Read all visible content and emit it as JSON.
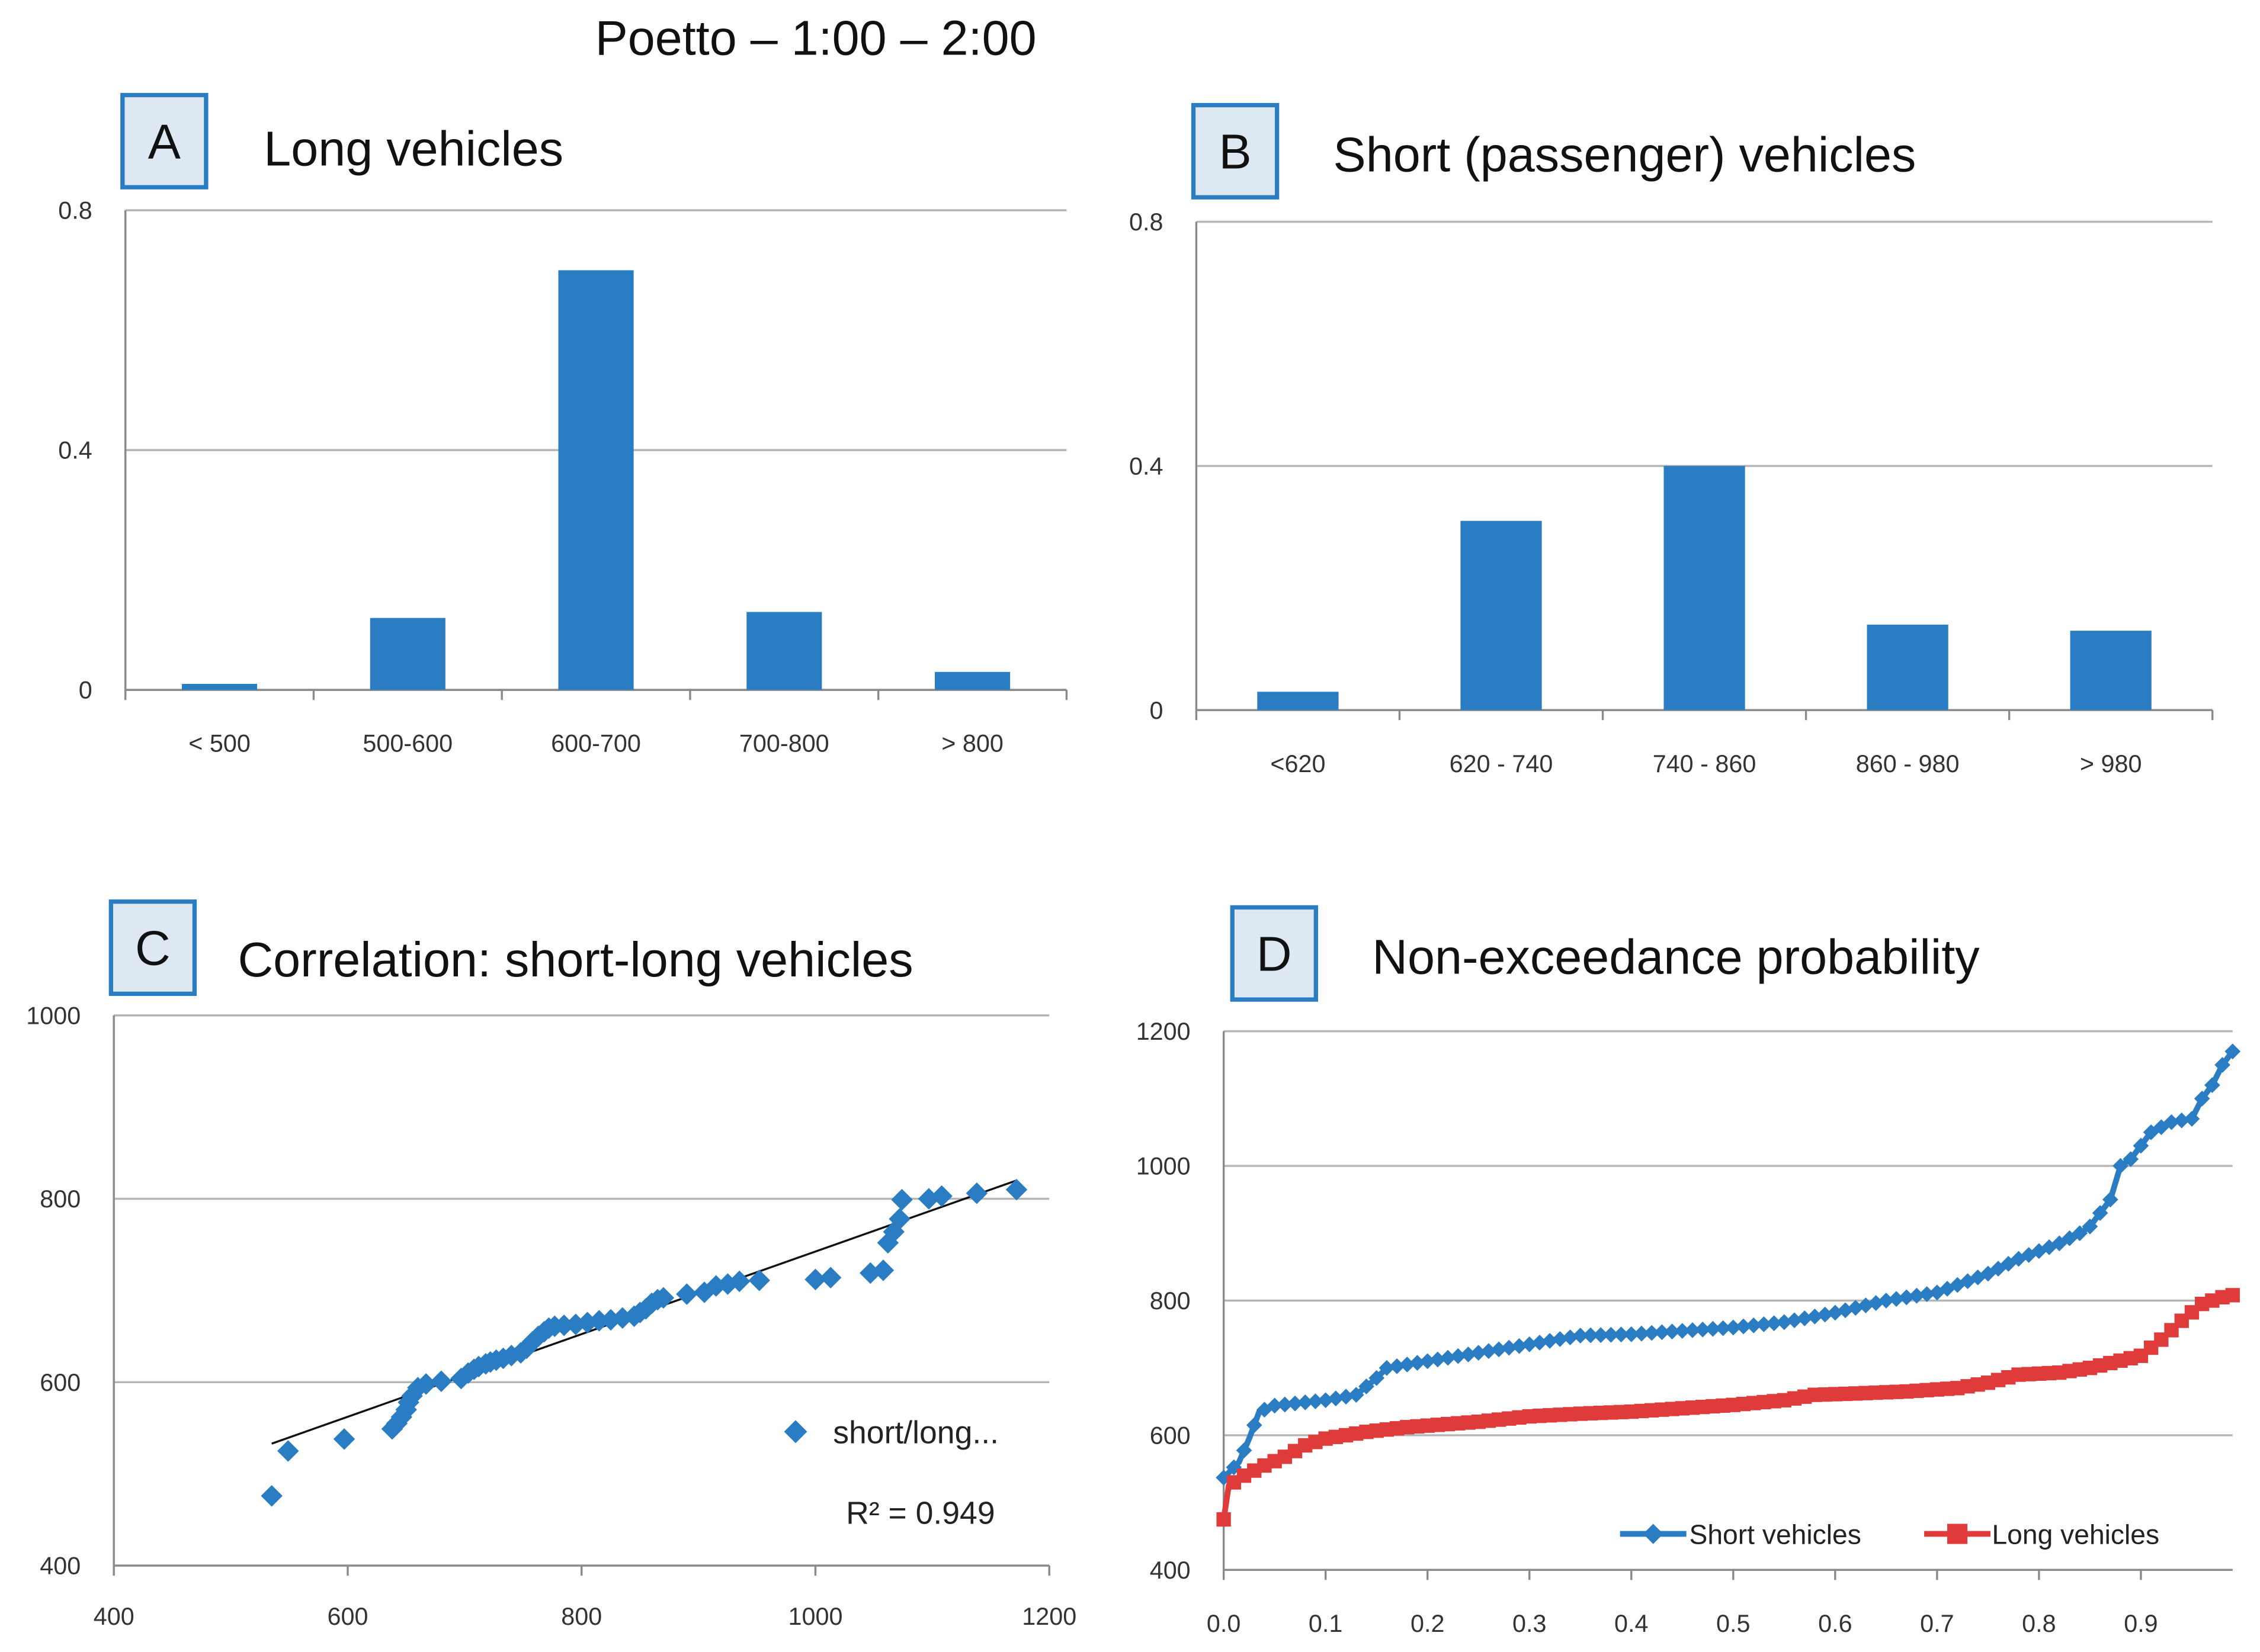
{
  "figure_title": "Poetto – 1:00 – 2:00",
  "colors": {
    "bar": "#2a7dc2",
    "short": "#2a7dc2",
    "long": "#e03b3b",
    "panel_box_fill": "#dde8f3",
    "panel_box_border": "#2a7dc2",
    "grid": "#b5b5b5",
    "axis": "#8a8a8a"
  },
  "chart_data": [
    {
      "panel": "A",
      "type": "bar",
      "title": "Long vehicles",
      "categories": [
        "< 500",
        "500-600",
        "600-700",
        "700-800",
        "> 800"
      ],
      "values": [
        0.01,
        0.12,
        0.7,
        0.13,
        0.03
      ],
      "yticks": [
        "0",
        "0.4",
        "0.8"
      ],
      "ylim": [
        0,
        0.8
      ],
      "grid": true
    },
    {
      "panel": "B",
      "type": "bar",
      "title": "Short (passenger) vehicles",
      "categories": [
        "<620",
        "620 - 740",
        "740 - 860",
        "860 - 980",
        "> 980"
      ],
      "values": [
        0.03,
        0.31,
        0.4,
        0.14,
        0.13
      ],
      "yticks": [
        "0",
        "0.4",
        "0.8"
      ],
      "ylim": [
        0,
        0.8
      ],
      "grid": true
    },
    {
      "panel": "C",
      "type": "scatter",
      "title": "Correlation: short-long vehicles",
      "xticks": [
        "400",
        "600",
        "800",
        "1000",
        "1200"
      ],
      "yticks": [
        "400",
        "600",
        "800",
        "1000"
      ],
      "xlim": [
        400,
        1200
      ],
      "ylim": [
        400,
        1000
      ],
      "legend": "short/long...",
      "r_squared_label": "R² = 0.949",
      "trendline": [
        [
          535,
          533
        ],
        [
          1172,
          820
        ]
      ],
      "points": [
        [
          535,
          476
        ],
        [
          549,
          525
        ],
        [
          597,
          538
        ],
        [
          638,
          549
        ],
        [
          642,
          555
        ],
        [
          646,
          562
        ],
        [
          650,
          570
        ],
        [
          652,
          578
        ],
        [
          655,
          585
        ],
        [
          660,
          594
        ],
        [
          667,
          598
        ],
        [
          680,
          601
        ],
        [
          697,
          604
        ],
        [
          703,
          610
        ],
        [
          708,
          614
        ],
        [
          712,
          617
        ],
        [
          718,
          620
        ],
        [
          722,
          622
        ],
        [
          727,
          624
        ],
        [
          733,
          626
        ],
        [
          740,
          629
        ],
        [
          748,
          632
        ],
        [
          753,
          637
        ],
        [
          758,
          644
        ],
        [
          763,
          650
        ],
        [
          768,
          655
        ],
        [
          772,
          659
        ],
        [
          777,
          661
        ],
        [
          785,
          662
        ],
        [
          795,
          663
        ],
        [
          805,
          665
        ],
        [
          815,
          667
        ],
        [
          825,
          668
        ],
        [
          835,
          670
        ],
        [
          845,
          672
        ],
        [
          850,
          676
        ],
        [
          855,
          680
        ],
        [
          860,
          686
        ],
        [
          865,
          690
        ],
        [
          870,
          692
        ],
        [
          890,
          696
        ],
        [
          905,
          698
        ],
        [
          915,
          705
        ],
        [
          925,
          707
        ],
        [
          935,
          710
        ],
        [
          952,
          711
        ],
        [
          1000,
          712
        ],
        [
          1013,
          714
        ],
        [
          1047,
          719
        ],
        [
          1058,
          722
        ],
        [
          1062,
          752
        ],
        [
          1067,
          764
        ],
        [
          1072,
          778
        ],
        [
          1074,
          799
        ],
        [
          1097,
          800
        ],
        [
          1108,
          803
        ],
        [
          1138,
          806
        ],
        [
          1172,
          810
        ]
      ],
      "grid": true
    },
    {
      "panel": "D",
      "type": "line",
      "title": "Non-exceedance probability",
      "xticks": [
        "0.0",
        "0.1",
        "0.2",
        "0.3",
        "0.4",
        "0.5",
        "0.6",
        "0.7",
        "0.8",
        "0.9"
      ],
      "yticks": [
        "400",
        "600",
        "800",
        "1000",
        "1200"
      ],
      "xlim": [
        0,
        0.99
      ],
      "ylim": [
        400,
        1200
      ],
      "series": [
        {
          "name": "Short vehicles",
          "marker": "diamond",
          "points": [
            [
              0,
              537
            ],
            [
              0.015,
              560
            ],
            [
              0.025,
              595
            ],
            [
              0.035,
              635
            ],
            [
              0.05,
              644
            ],
            [
              0.1,
              652
            ],
            [
              0.13,
              660
            ],
            [
              0.15,
              685
            ],
            [
              0.16,
              700
            ],
            [
              0.2,
              710
            ],
            [
              0.3,
              735
            ],
            [
              0.35,
              748
            ],
            [
              0.4,
              750
            ],
            [
              0.45,
              755
            ],
            [
              0.5,
              760
            ],
            [
              0.55,
              768
            ],
            [
              0.6,
              782
            ],
            [
              0.65,
              800
            ],
            [
              0.7,
              812
            ],
            [
              0.75,
              840
            ],
            [
              0.78,
              862
            ],
            [
              0.82,
              885
            ],
            [
              0.84,
              900
            ],
            [
              0.85,
              910
            ],
            [
              0.86,
              930
            ],
            [
              0.87,
              950
            ],
            [
              0.88,
              1000
            ],
            [
              0.89,
              1010
            ],
            [
              0.91,
              1050
            ],
            [
              0.93,
              1065
            ],
            [
              0.95,
              1070
            ],
            [
              0.96,
              1100
            ],
            [
              0.97,
              1120
            ],
            [
              0.98,
              1150
            ],
            [
              0.99,
              1170
            ]
          ]
        },
        {
          "name": "Long vehicles",
          "marker": "square",
          "points": [
            [
              0,
              475
            ],
            [
              0.005,
              525
            ],
            [
              0.02,
              540
            ],
            [
              0.04,
              555
            ],
            [
              0.06,
              568
            ],
            [
              0.08,
              585
            ],
            [
              0.1,
              595
            ],
            [
              0.14,
              605
            ],
            [
              0.18,
              612
            ],
            [
              0.25,
              620
            ],
            [
              0.3,
              628
            ],
            [
              0.35,
              632
            ],
            [
              0.4,
              635
            ],
            [
              0.45,
              640
            ],
            [
              0.5,
              645
            ],
            [
              0.55,
              652
            ],
            [
              0.58,
              660
            ],
            [
              0.62,
              662
            ],
            [
              0.67,
              665
            ],
            [
              0.72,
              670
            ],
            [
              0.75,
              678
            ],
            [
              0.78,
              690
            ],
            [
              0.82,
              693
            ],
            [
              0.85,
              700
            ],
            [
              0.9,
              718
            ],
            [
              0.92,
              742
            ],
            [
              0.94,
              770
            ],
            [
              0.96,
              795
            ],
            [
              0.98,
              805
            ],
            [
              0.99,
              808
            ]
          ]
        }
      ],
      "legend_position": "bottom",
      "grid": true
    }
  ]
}
